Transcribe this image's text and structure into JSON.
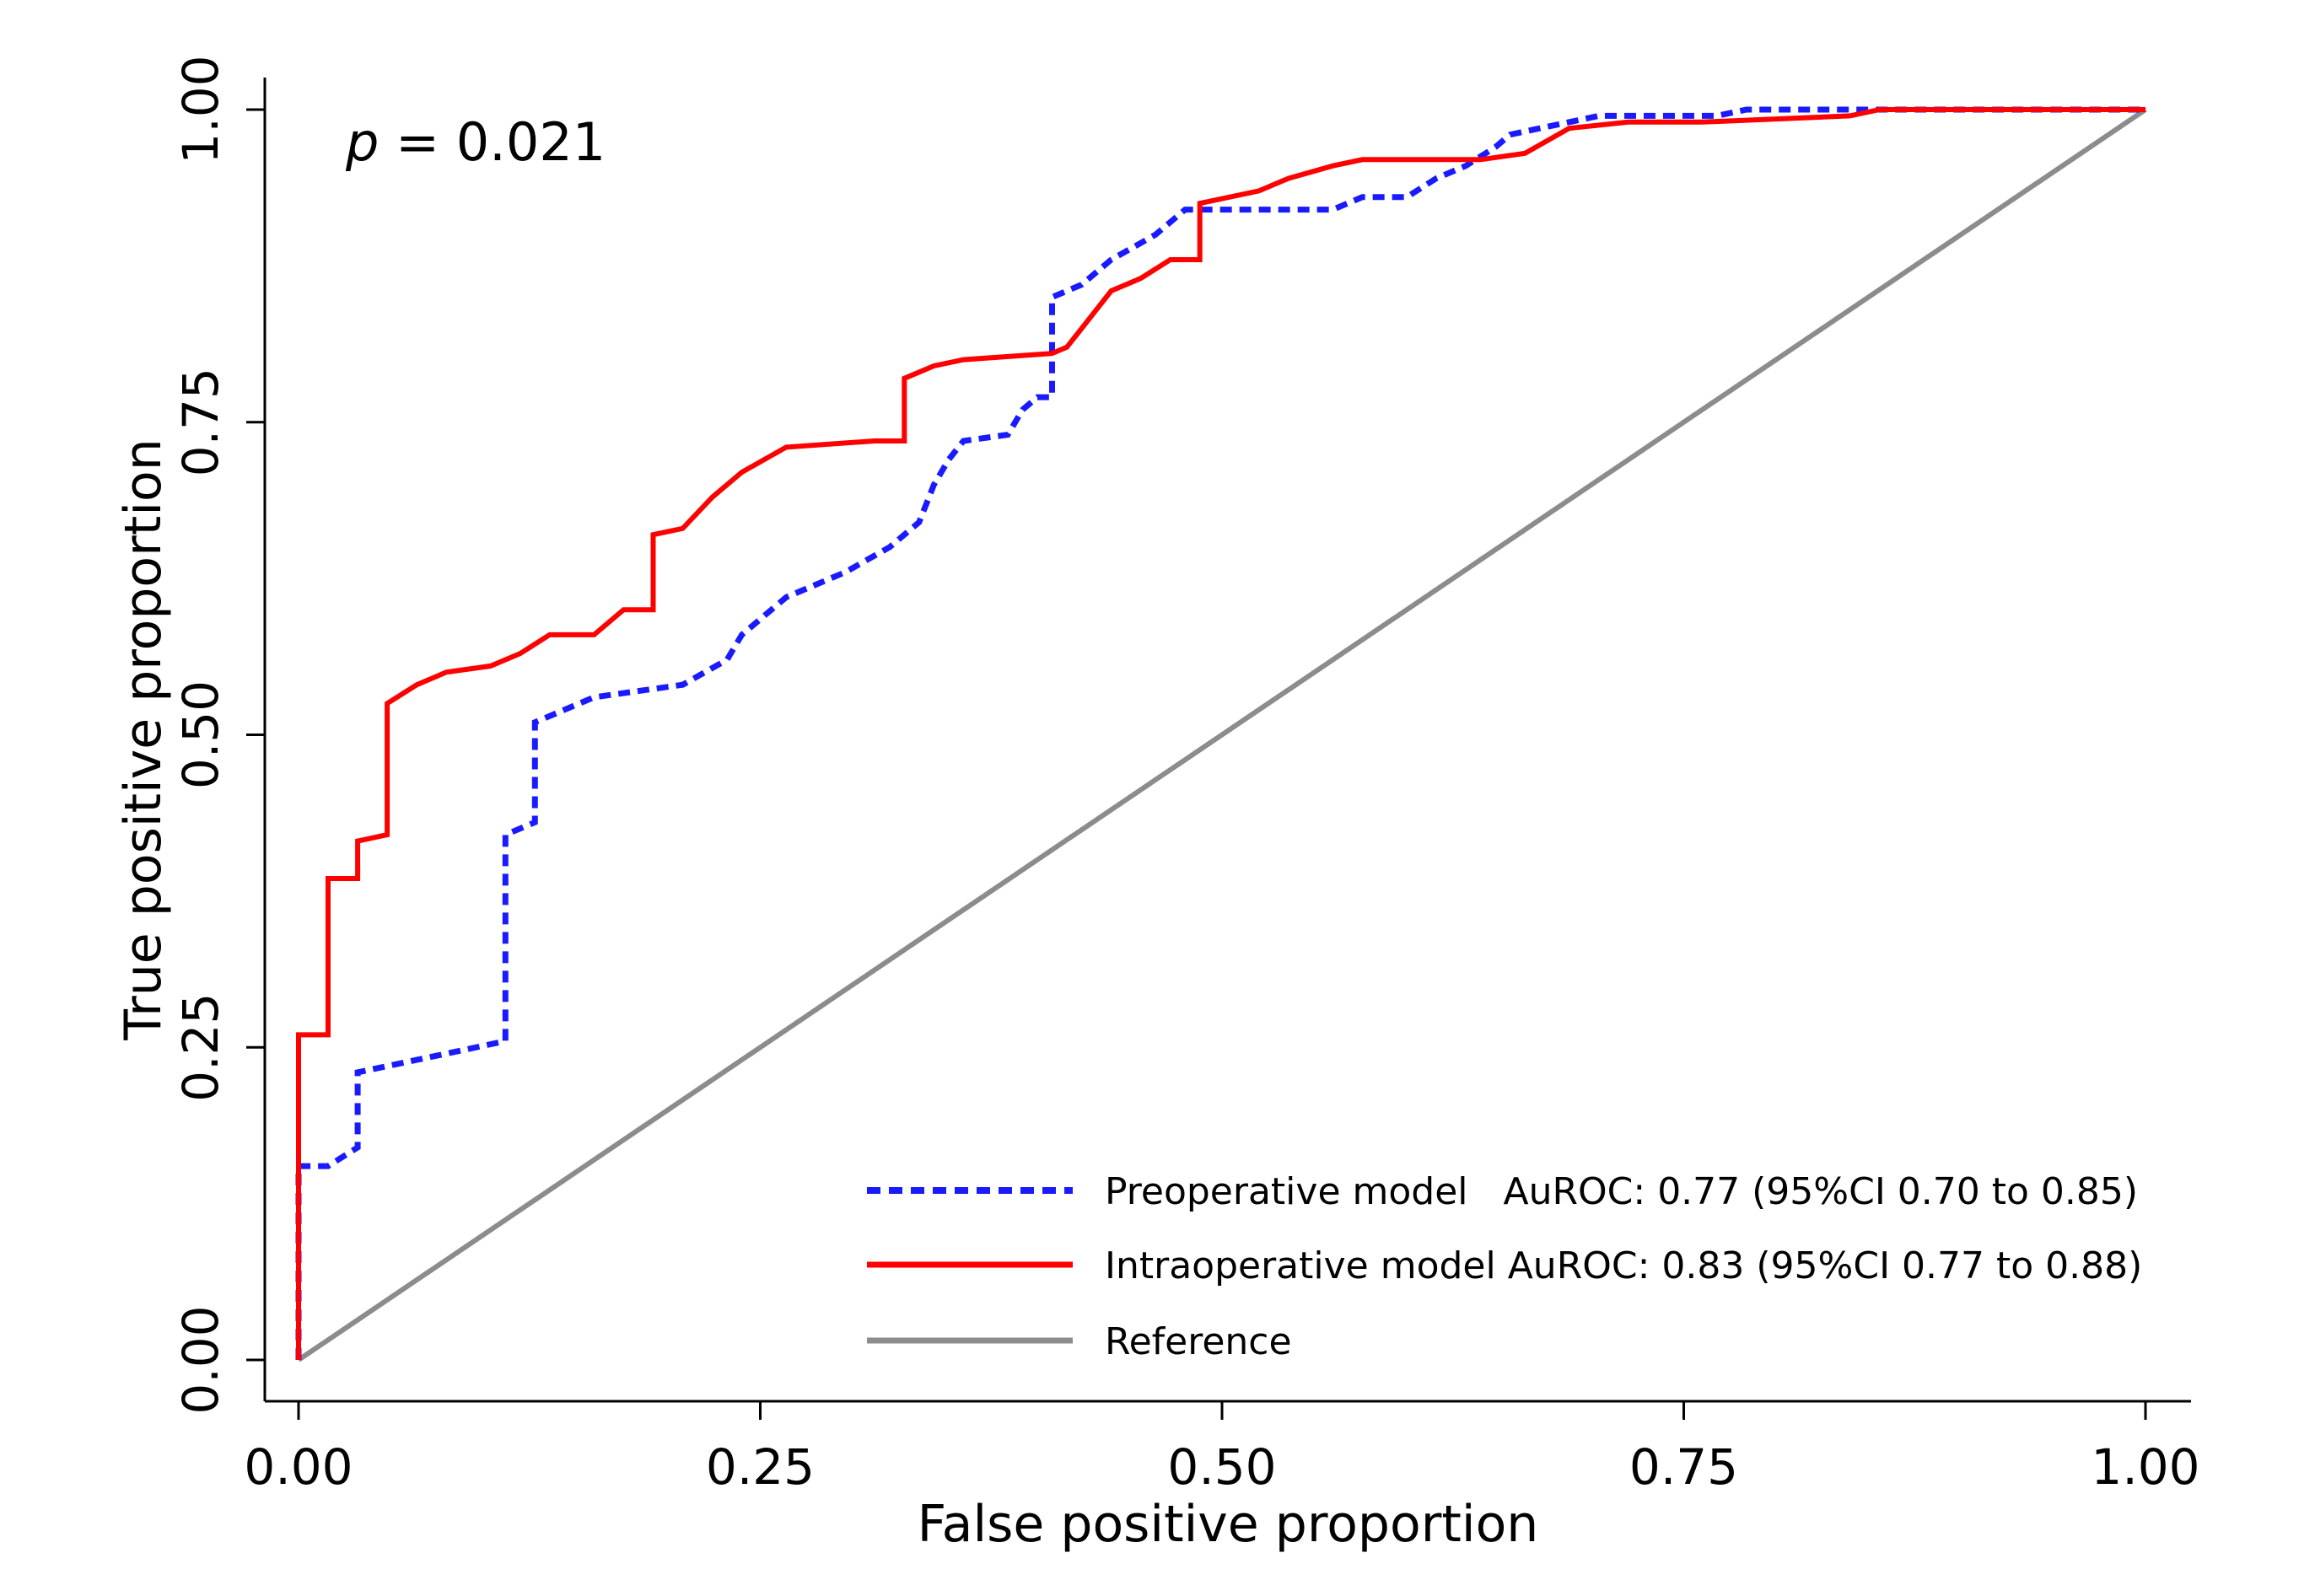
{
  "chart_data": {
    "type": "line",
    "title": "",
    "xlabel": "False positive proportion",
    "ylabel": "True positive proportion",
    "xlim": [
      0,
      1
    ],
    "ylim": [
      0,
      1
    ],
    "xticks": [
      "0.00",
      "0.25",
      "0.50",
      "0.75",
      "1.00"
    ],
    "yticks": [
      "0.00",
      "0.25",
      "0.50",
      "0.75",
      "1.00"
    ],
    "grid": false,
    "annotation": {
      "italic": "p",
      "text": " = 0.021"
    },
    "legend_position": "bottom-right",
    "series": [
      {
        "name": "Preoperative model",
        "label": "Preoperative model   AuROC: 0.77 (95%CI 0.70 to 0.85)",
        "color": "#1a1aff",
        "style": "dashed",
        "x": [
          0,
          0,
          0.016,
          0.032,
          0.032,
          0.064,
          0.096,
          0.112,
          0.112,
          0.128,
          0.128,
          0.16,
          0.208,
          0.232,
          0.24,
          0.264,
          0.296,
          0.32,
          0.336,
          0.344,
          0.352,
          0.36,
          0.384,
          0.392,
          0.4,
          0.408,
          0.408,
          0.424,
          0.44,
          0.464,
          0.48,
          0.56,
          0.576,
          0.6,
          0.616,
          0.632,
          0.648,
          0.656,
          0.672,
          0.704,
          0.768,
          0.784,
          0.856,
          1.0
        ],
        "y": [
          0,
          0.155,
          0.155,
          0.17,
          0.23,
          0.24,
          0.25,
          0.255,
          0.42,
          0.43,
          0.51,
          0.53,
          0.54,
          0.56,
          0.58,
          0.61,
          0.63,
          0.65,
          0.67,
          0.7,
          0.72,
          0.735,
          0.74,
          0.76,
          0.77,
          0.77,
          0.85,
          0.86,
          0.88,
          0.9,
          0.92,
          0.92,
          0.93,
          0.93,
          0.945,
          0.955,
          0.97,
          0.98,
          0.985,
          0.995,
          0.995,
          1.0,
          1.0,
          1.0
        ]
      },
      {
        "name": "Intraoperative model",
        "label": "Intraoperative model AuROC: 0.83 (95%CI 0.77 to 0.88)",
        "color": "#ff0000",
        "style": "solid",
        "x": [
          0,
          0,
          0.016,
          0.016,
          0.032,
          0.032,
          0.048,
          0.048,
          0.064,
          0.08,
          0.104,
          0.12,
          0.136,
          0.16,
          0.176,
          0.192,
          0.192,
          0.208,
          0.224,
          0.24,
          0.264,
          0.312,
          0.328,
          0.328,
          0.344,
          0.36,
          0.408,
          0.416,
          0.424,
          0.44,
          0.456,
          0.472,
          0.488,
          0.488,
          0.52,
          0.536,
          0.56,
          0.576,
          0.64,
          0.664,
          0.688,
          0.72,
          0.76,
          0.84,
          0.856,
          1.0
        ],
        "y": [
          0,
          0.26,
          0.26,
          0.385,
          0.385,
          0.415,
          0.42,
          0.525,
          0.54,
          0.55,
          0.555,
          0.565,
          0.58,
          0.58,
          0.6,
          0.6,
          0.66,
          0.665,
          0.69,
          0.71,
          0.73,
          0.735,
          0.735,
          0.785,
          0.795,
          0.8,
          0.805,
          0.81,
          0.825,
          0.855,
          0.865,
          0.88,
          0.88,
          0.925,
          0.935,
          0.945,
          0.955,
          0.96,
          0.96,
          0.965,
          0.985,
          0.99,
          0.99,
          0.995,
          1.0,
          1.0
        ]
      },
      {
        "name": "Reference",
        "label": "Reference",
        "color": "#8c8c8c",
        "style": "solid",
        "x": [
          0,
          1
        ],
        "y": [
          0,
          1
        ]
      }
    ]
  }
}
